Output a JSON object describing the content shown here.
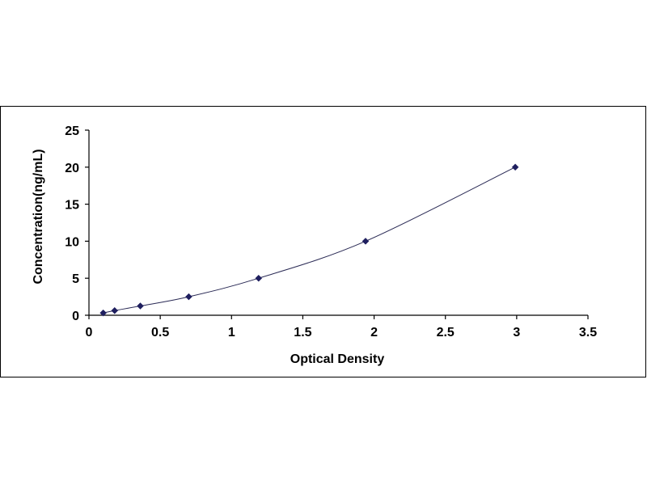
{
  "chart_data": {
    "type": "scatter",
    "title": "",
    "xlabel": "Optical Density",
    "ylabel": "Concentration(ng/mL)",
    "xlim": [
      0,
      3.5
    ],
    "ylim": [
      0,
      25
    ],
    "x_ticks": [
      "0",
      "0.5",
      "1",
      "1.5",
      "2",
      "2.5",
      "3",
      "3.5"
    ],
    "y_ticks": [
      "0",
      "5",
      "10",
      "15",
      "20",
      "25"
    ],
    "grid": false,
    "legend": "none",
    "series": [
      {
        "marker": "diamond",
        "line": "smooth",
        "color": "#1f1f5f",
        "points": [
          {
            "x": 0.1,
            "y": 0.31
          },
          {
            "x": 0.18,
            "y": 0.63
          },
          {
            "x": 0.36,
            "y": 1.25
          },
          {
            "x": 0.7,
            "y": 2.5
          },
          {
            "x": 1.19,
            "y": 5
          },
          {
            "x": 1.94,
            "y": 10
          },
          {
            "x": 2.99,
            "y": 20
          }
        ]
      }
    ]
  }
}
